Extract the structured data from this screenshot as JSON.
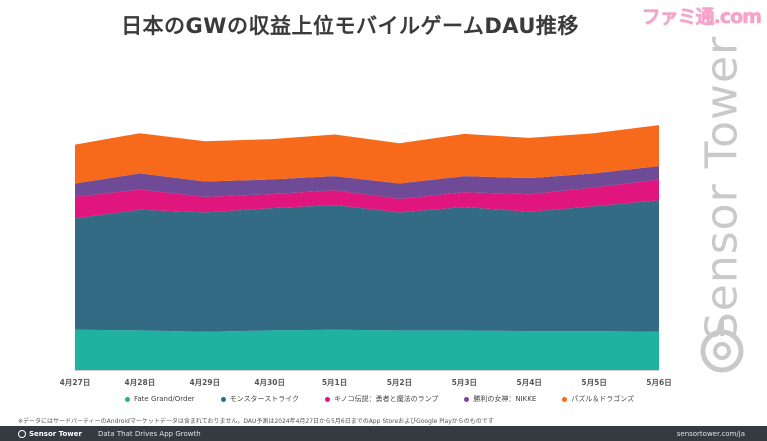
{
  "title": "日本のGWの収益上位モバイルゲームDAU推移",
  "watermark_logo_text": "ファミ通.com",
  "vertical_watermark": "Sensor Tower",
  "chart_data": {
    "type": "area",
    "stacked": true,
    "title": "日本のGWの収益上位モバイルゲームDAU推移",
    "categories": [
      "4月27日",
      "4月28日",
      "4月29日",
      "4月30日",
      "5月1日",
      "5月2日",
      "5月3日",
      "5月4日",
      "5月5日",
      "5月6日"
    ],
    "series": [
      {
        "name": "Fate Grand/Order",
        "color": "#20b2a0",
        "values": [
          30,
          29.5,
          28.5,
          29.5,
          30,
          29.5,
          29.5,
          29,
          29,
          28.5
        ]
      },
      {
        "name": "モンスターストライク",
        "color": "#336b85",
        "values": [
          83,
          90,
          89,
          91,
          93,
          88,
          92,
          89,
          93,
          98
        ]
      },
      {
        "name": "キノコ伝説：勇者と魔法のランプ",
        "color": "#e0157e",
        "values": [
          16,
          15,
          11.5,
          10.5,
          11,
          10,
          11,
          13,
          14,
          15.5
        ]
      },
      {
        "name": "勝利の女神：NIKKE",
        "color": "#6e4a97",
        "values": [
          10,
          12,
          11.5,
          11,
          10.5,
          11.5,
          12,
          12,
          10.5,
          10
        ]
      },
      {
        "name": "パズル＆ドラゴンズ",
        "color": "#f86a1b",
        "values": [
          29,
          30,
          30,
          30,
          31,
          30,
          31.5,
          30,
          30,
          30.5
        ]
      }
    ],
    "ylim": [
      0,
      240
    ],
    "grid": false,
    "legend": "bottom"
  },
  "note": "※データにはサードパーティーのAndroidマーケットデータは含まれておりません。DAU予測は2024年4月27日から5月6日までのApp StoreおよびGoogle Playからのものです",
  "footer": {
    "brand": "Sensor Tower",
    "tagline": "Data That Drives App Growth",
    "url": "sensortower.com/ja"
  }
}
